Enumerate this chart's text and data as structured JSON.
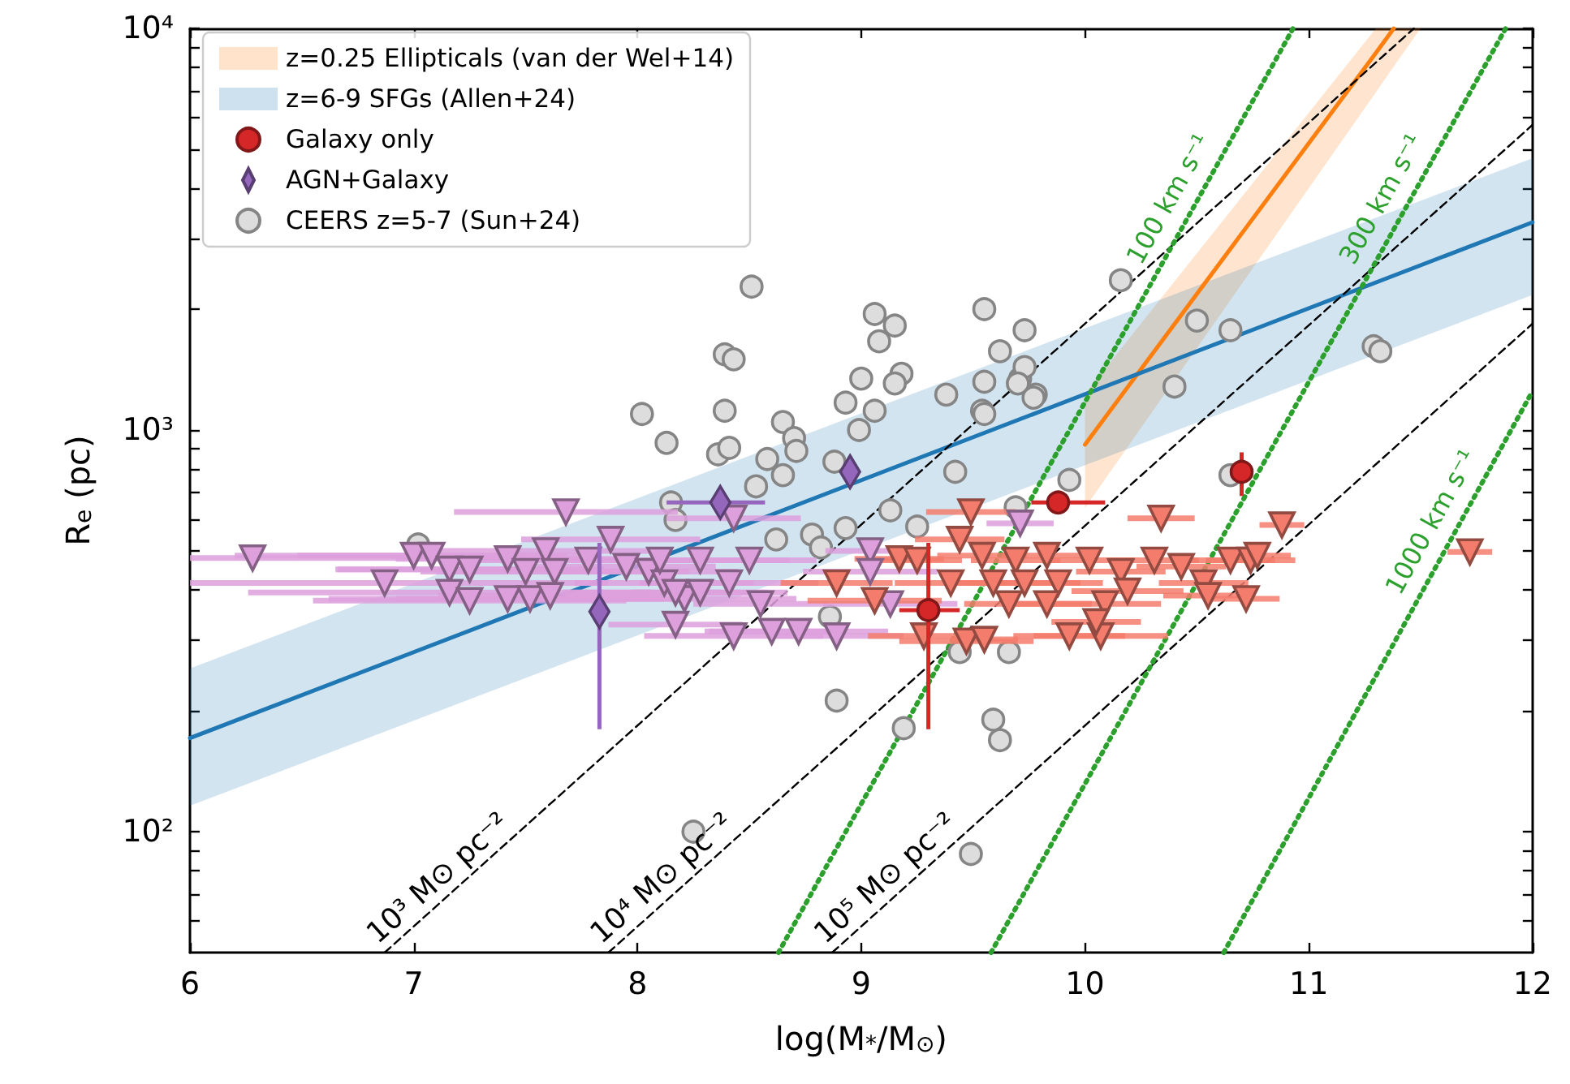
{
  "chart_data": {
    "type": "scatter",
    "xlabel": "log(M$_{*}$/M$_{⊙}$)",
    "ylabel": "R$_{e}$ (pc)",
    "xlim": [
      6,
      12
    ],
    "xticks": [
      6,
      7,
      8,
      9,
      10,
      11,
      12
    ],
    "ylim": [
      50,
      10000
    ],
    "yticks": [
      {
        "value": 60,
        "label": null
      },
      {
        "value": 70,
        "label": null
      },
      {
        "value": 80,
        "label": null
      },
      {
        "value": 90,
        "label": null
      },
      {
        "value": 100,
        "label": "10²"
      },
      {
        "value": 200,
        "label": null
      },
      {
        "value": 300,
        "label": null
      },
      {
        "value": 400,
        "label": null
      },
      {
        "value": 500,
        "label": null
      },
      {
        "value": 600,
        "label": null
      },
      {
        "value": 700,
        "label": null
      },
      {
        "value": 800,
        "label": null
      },
      {
        "value": 900,
        "label": null
      },
      {
        "value": 1000,
        "label": "10³"
      },
      {
        "value": 2000,
        "label": null
      },
      {
        "value": 3000,
        "label": null
      },
      {
        "value": 4000,
        "label": null
      },
      {
        "value": 5000,
        "label": null
      },
      {
        "value": 6000,
        "label": null
      },
      {
        "value": 7000,
        "label": null
      },
      {
        "value": 8000,
        "label": null
      },
      {
        "value": 9000,
        "label": null
      },
      {
        "value": 10000,
        "label": "10⁴"
      }
    ],
    "log": "y",
    "grid": false,
    "legend": "top left",
    "series": [
      {
        "name": "z=0.25 Ellipticals (van der Wel+14)",
        "type": "line",
        "color": "#ff7f0e",
        "x": [
          10,
          11.3,
          11.38,
          11.5
        ],
        "values": [
          920,
          8690,
          10000,
          null
        ],
        "lower": [
          640,
          6930,
          8040,
          10000
        ],
        "upper": [
          1230,
          10000,
          10000,
          10000
        ]
      },
      {
        "name": "z=6-9 SFGs (Allen+24)",
        "type": "line",
        "color": "#1f77b4",
        "x": [
          6,
          12
        ],
        "values": [
          171,
          3290
        ],
        "lower": [
          116,
          2170
        ],
        "upper": [
          255,
          4750
        ]
      },
      {
        "name": "Galaxy only",
        "marker": "circle",
        "color": "#d62728",
        "x": [
          9.3,
          9.88,
          10.7
        ],
        "values": [
          356,
          660,
          787
        ],
        "errors": [
          [
            180,
            524
          ],
          null,
          [
            685,
            880
          ]
        ],
        "xerrors": [
          [
            9.17,
            9.44
          ],
          [
            9.76,
            10.09
          ],
          null
        ]
      },
      {
        "name": "AGN+Galaxy",
        "marker": "diamond",
        "color": "#9467bd",
        "x": [
          7.83,
          8.37,
          8.95
        ],
        "values": [
          353,
          660,
          787
        ],
        "errors": [
          [
            180,
            524
          ],
          null,
          null
        ],
        "xerrors": [
          null,
          [
            8.13,
            8.57
          ],
          null
        ]
      },
      {
        "name": "CEERS z=5-7 (Sun+24)",
        "marker": "circle",
        "color": "#dddddd",
        "x": [
          7.02,
          8.02,
          8.13,
          8.15,
          8.17,
          8.39,
          8.43,
          8.39,
          8.36,
          8.41,
          8.58,
          8.65,
          8.7,
          8.53,
          8.65,
          8.71,
          8.88,
          8.93,
          8.99,
          9.0,
          9.06,
          9.18,
          9.15,
          9.08,
          9.06,
          9.15,
          9.38,
          9.55,
          9.54,
          9.62,
          9.73,
          9.71,
          9.78,
          9.42,
          9.25,
          9.13,
          8.93,
          8.78,
          8.82,
          8.62,
          8.86,
          9.44,
          9.66,
          8.89,
          9.19,
          9.59,
          9.62,
          9.93,
          9.69,
          10.16,
          9.55,
          9.73,
          9.7,
          9.77,
          9.55,
          10.5,
          10.65,
          10.4,
          11.29,
          11.32,
          10.65,
          9.49,
          8.25,
          8.51
        ],
        "values": [
          519,
          1096,
          929,
          660,
          597,
          1543,
          1500,
          1117,
          870,
          903,
          847,
          1047,
          955,
          724,
          772,
          887,
          834,
          1170,
          1000,
          1343,
          1117,
          1381,
          1306,
          1663,
          1945,
          1820,
          1225,
          1319,
          1117,
          1571,
          1772,
          1343,
          1225,
          787,
          575,
          631,
          570,
          549,
          510,
          534,
          343,
          280,
          280,
          212,
          181,
          190,
          169,
          751,
          642,
          2360,
          2000,
          1435,
          1306,
          1204,
          1096,
          1873,
          1772,
          1283,
          1616,
          1571,
          772,
          88,
          100,
          2275
        ]
      },
      {
        "marker": "triangle",
        "color": "#dda0dd",
        "x": [
          6.28,
          6.87,
          7.0,
          7.08,
          7.16,
          7.25,
          7.16,
          7.25,
          7.42,
          7.42,
          7.5,
          7.59,
          7.63,
          7.68,
          7.88,
          7.78,
          7.95,
          8.05,
          7.52,
          7.61,
          8.12,
          8.17,
          8.21,
          8.1,
          8.17,
          8.28,
          8.43,
          8.41,
          8.5,
          8.43,
          8.6,
          8.72,
          8.89,
          9.04,
          9.04,
          9.13,
          9.71,
          8.55,
          8.28
        ],
        "values": [
          480,
          416,
          487,
          487,
          450,
          450,
          394,
          376,
          478,
          380,
          444,
          500,
          444,
          625,
          534,
          474,
          457,
          444,
          380,
          387,
          416,
          328,
          380,
          474,
          394,
          474,
          603,
          416,
          474,
          307,
          315,
          315,
          307,
          500,
          444,
          369,
          586,
          369,
          394
        ],
        "xerrors": [
          1.2,
          1.0,
          0.8,
          0.6,
          0.5,
          0.6,
          0.9,
          0.7,
          0.5,
          0.8,
          0.4,
          0.5,
          0.6,
          0.5,
          0.4,
          0.5,
          0.4,
          0.4,
          0.6,
          0.5,
          0.4,
          0.3,
          0.5,
          0.4,
          0.5,
          0.4,
          0.3,
          0.4,
          0.3,
          0.4,
          0.3,
          0.4,
          0.3,
          0.2,
          0.3,
          0.3,
          0.15,
          0.3,
          0.3
        ]
      },
      {
        "marker": "triangle",
        "color": "#f47c6c",
        "x": [
          8.89,
          9.06,
          9.17,
          9.25,
          9.28,
          9.47,
          9.49,
          9.44,
          9.4,
          9.54,
          9.59,
          9.69,
          9.73,
          9.83,
          9.88,
          9.93,
          10.07,
          10.02,
          10.09,
          10.16,
          10.34,
          10.31,
          10.43,
          10.53,
          10.65,
          10.72,
          10.74,
          10.88,
          11.72,
          10.77,
          10.55,
          10.19,
          9.66,
          9.83,
          10.05,
          9.55
        ],
        "values": [
          416,
          376,
          478,
          474,
          307,
          298,
          625,
          534,
          416,
          487,
          416,
          474,
          416,
          487,
          416,
          307,
          307,
          474,
          369,
          444,
          603,
          474,
          457,
          416,
          474,
          380,
          474,
          580,
          497,
          487,
          387,
          397,
          369,
          369,
          333,
          301
        ],
        "xerrors": [
          0.25,
          0.3,
          0.2,
          0.2,
          0.25,
          0.3,
          0.2,
          0.2,
          0.25,
          0.2,
          0.2,
          0.2,
          0.25,
          0.2,
          0.2,
          0.25,
          0.3,
          0.2,
          0.25,
          0.2,
          0.15,
          0.2,
          0.2,
          0.2,
          0.2,
          0.15,
          0.2,
          0.1,
          0.1,
          0.15,
          0.2,
          0.25,
          0.2,
          0.2,
          0.2,
          0.15
        ]
      },
      {
        "name": "10³ M⊙ pc⁻²",
        "type": "line",
        "line_style": "dashed",
        "color": "#000000",
        "x": [
          6.87,
          11.47
        ],
        "values": [
          50,
          10000
        ]
      },
      {
        "name": "10⁴ M⊙ pc⁻²",
        "type": "line",
        "line_style": "dashed",
        "color": "#000000",
        "x": [
          7.87,
          12
        ],
        "values": [
          50,
          5750
        ]
      },
      {
        "name": "10⁵ M⊙ pc⁻²",
        "type": "line",
        "line_style": "dashed",
        "color": "#000000",
        "x": [
          8.87,
          12
        ],
        "values": [
          50,
          1840
        ]
      },
      {
        "name": "100 km s⁻¹",
        "type": "line",
        "line_style": "dotted",
        "color": "#2ca02c",
        "x": [
          8.63,
          10.93
        ],
        "values": [
          50,
          10000
        ]
      },
      {
        "name": "300 km s⁻¹",
        "type": "line",
        "line_style": "dotted",
        "color": "#2ca02c",
        "x": [
          9.58,
          11.88
        ],
        "values": [
          50,
          10000
        ]
      },
      {
        "name": "1000 km s⁻¹",
        "type": "line",
        "line_style": "dotted",
        "color": "#2ca02c",
        "x": [
          10.62,
          12
        ],
        "values": [
          50,
          1250
        ]
      }
    ]
  }
}
